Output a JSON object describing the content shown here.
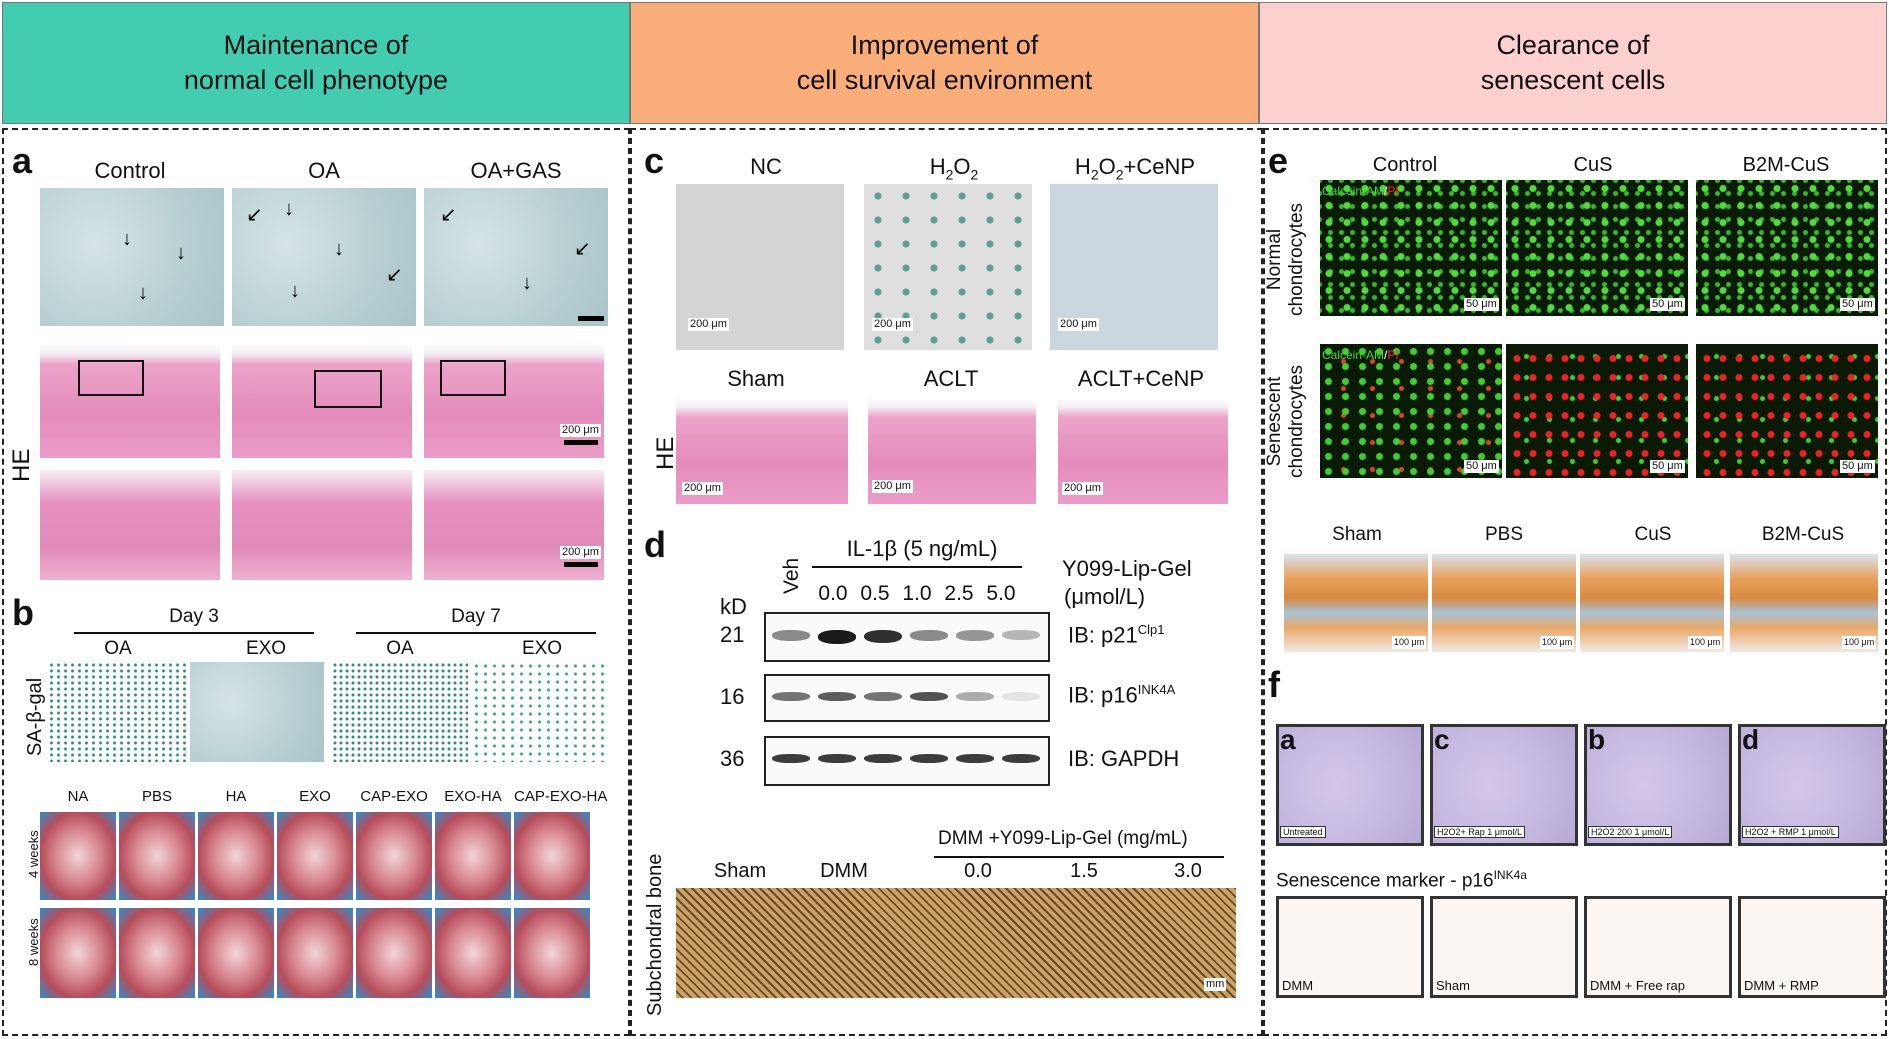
{
  "headers": [
    {
      "text": "Maintenance of\nnormal cell phenotype",
      "color": "#42cdb0"
    },
    {
      "text": "Improvement of\ncell survival environment",
      "color": "#f9ad78"
    },
    {
      "text": "Clearance of\nsenescent cells",
      "color": "#fbd0cf"
    }
  ],
  "panel_a": {
    "label": "a",
    "cols": [
      "Control",
      "OA",
      "OA+GAS"
    ],
    "row_label": "HE",
    "scale": "200 μm"
  },
  "panel_b": {
    "label": "b",
    "day3": "Day 3",
    "day7": "Day 7",
    "cols": [
      "OA",
      "EXO",
      "OA",
      "EXO"
    ],
    "row_label": "SA-β-gal",
    "groups": [
      "NA",
      "PBS",
      "HA",
      "EXO",
      "CAP-EXO",
      "EXO-HA",
      "CAP-EXO-HA"
    ],
    "rows": [
      "4 weeks",
      "8 weeks"
    ]
  },
  "panel_c": {
    "label": "c",
    "cols1": [
      "NC",
      "H2O2",
      "H2O2+CeNP"
    ],
    "cols2": [
      "Sham",
      "ACLT",
      "ACLT+CeNP"
    ],
    "row_label": "HE",
    "scale": "200 μm"
  },
  "panel_d": {
    "label": "d",
    "veh": "Veh",
    "il1b": "IL-1β (5 ng/mL)",
    "conc": [
      "0.0",
      "0.5",
      "1.0",
      "2.5",
      "5.0"
    ],
    "drug": "Y099-Lip-Gel",
    "unit": "(μmol/L)",
    "kd": "kD",
    "mw": [
      "21",
      "16",
      "36"
    ],
    "ib": [
      "IB: p21",
      "IB: p16",
      "IB: GAPDH"
    ],
    "ib_sup": [
      "Clp1",
      "INK4A",
      ""
    ],
    "dmm_title": "DMM +Y099-Lip-Gel (mg/mL)",
    "bone_cols": [
      "Sham",
      "DMM",
      "0.0",
      "1.5",
      "3.0"
    ],
    "bone_label": "Subchondral bone",
    "bone_scale": "mm"
  },
  "panel_e": {
    "label": "e",
    "cols": [
      "Control",
      "CuS",
      "B2M-CuS"
    ],
    "rows": [
      "Normal\nchondrocytes",
      "Senescent\nchondrocytes"
    ],
    "stain_green": "Calcein-AM",
    "stain_sep": "/",
    "stain_red": "PI",
    "scale": "50 μm",
    "cols2": [
      "Sham",
      "PBS",
      "CuS",
      "B2M-CuS"
    ],
    "scale2": "100 μm"
  },
  "panel_f": {
    "label": "f",
    "letters": [
      "a",
      "c",
      "b",
      "d"
    ],
    "captions": [
      "Untreated",
      "H2O2+ Rap 1 μmol/L",
      "H2O2 200 1 μmol/L",
      "H2O2 + RMP 1 μmol/L"
    ],
    "marker": "Senescence marker - p16",
    "marker_sup": "INK4a",
    "ihc": [
      "DMM",
      "Sham",
      "DMM + Free rap",
      "DMM + RMP"
    ]
  }
}
